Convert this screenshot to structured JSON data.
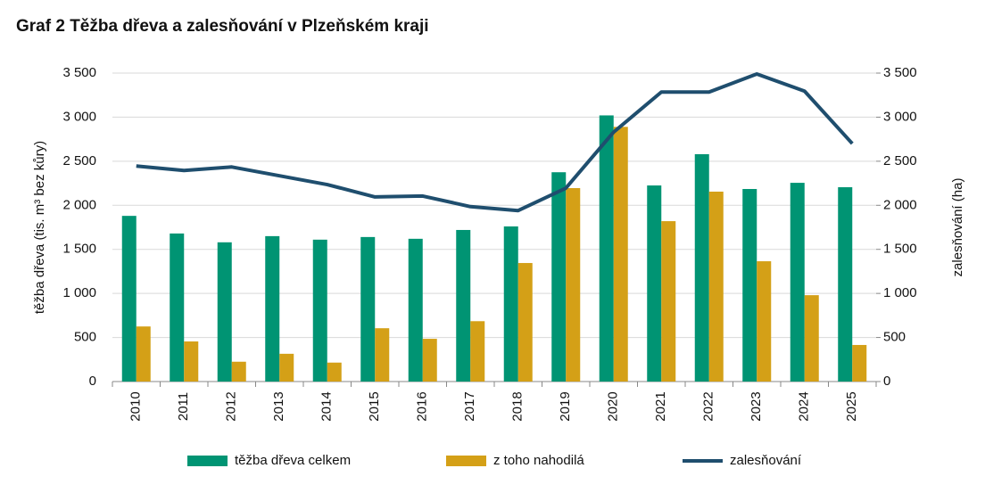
{
  "chart_data": {
    "type": "bar",
    "title": "Graf 2 Těžba dřeva a zalesňování v Plzeňském kraji",
    "y_label": "těžba dřeva (tis. m³ bez kůry)",
    "y2_label": "zalesňování (ha)",
    "categories": [
      "2010",
      "2011",
      "2012",
      "2013",
      "2014",
      "2015",
      "2016",
      "2017",
      "2018",
      "2019",
      "2020",
      "2021",
      "2022",
      "2023",
      "2024",
      "2025"
    ],
    "series": [
      {
        "name": "těžba dřeva celkem",
        "type": "bar",
        "color": "#009473",
        "values": [
          1880,
          1680,
          1580,
          1650,
          1610,
          1640,
          1620,
          1720,
          1760,
          2375,
          3020,
          2225,
          2580,
          2185,
          2255,
          2205
        ]
      },
      {
        "name": "z toho nahodilá",
        "type": "bar",
        "color": "#d4a017",
        "values": [
          625,
          455,
          225,
          315,
          215,
          605,
          485,
          685,
          1345,
          2195,
          2890,
          1820,
          2155,
          1365,
          980,
          415
        ]
      },
      {
        "name": "zalesňování",
        "type": "line",
        "axis": "y2",
        "color": "#1f4e6e",
        "values": [
          2445,
          2395,
          2435,
          2335,
          2235,
          2095,
          2105,
          1985,
          1940,
          2195,
          2830,
          3285,
          3285,
          3490,
          3295,
          2700
        ]
      }
    ],
    "ylim": [
      0,
      3500
    ],
    "yticks": [
      0,
      500,
      {
        "value": 1000,
        "label": "1 000"
      },
      {
        "value": 1500,
        "label": "1 500"
      },
      {
        "value": 2000,
        "label": "2 000"
      },
      {
        "value": 2500,
        "label": "2 500"
      },
      {
        "value": 3000,
        "label": "3 000"
      },
      {
        "value": 3500,
        "label": "3 500"
      }
    ],
    "y2lim": [
      0,
      3500
    ],
    "y2ticks": [
      0,
      500,
      {
        "value": 1000,
        "label": "1 000"
      },
      {
        "value": 1500,
        "label": "1 500"
      },
      {
        "value": 2000,
        "label": "2 000"
      },
      {
        "value": 2500,
        "label": "2 500"
      },
      {
        "value": 3000,
        "label": "3 000"
      },
      {
        "value": 3500,
        "label": "3 500"
      }
    ],
    "grid": true
  }
}
